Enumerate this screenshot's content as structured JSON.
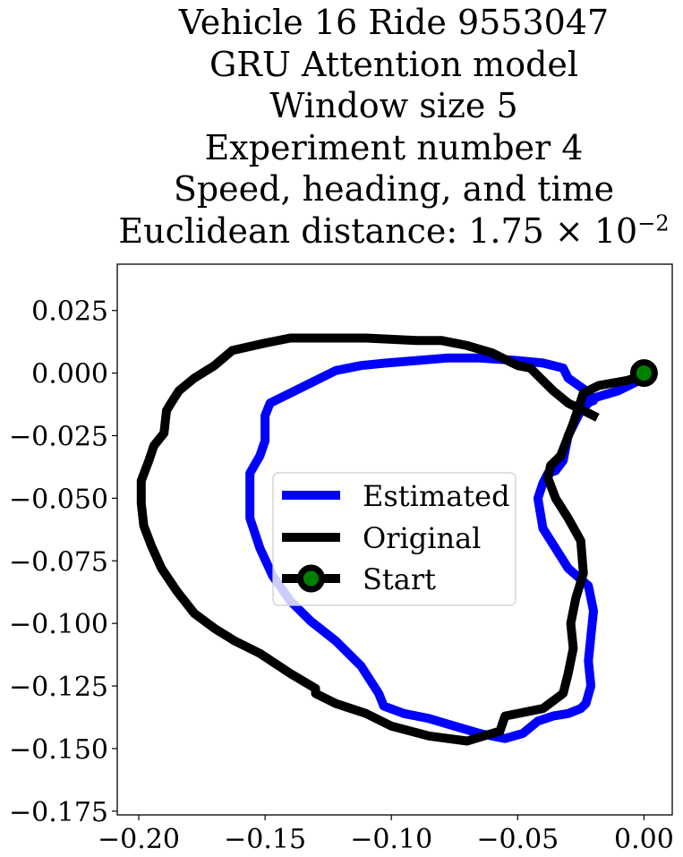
{
  "title": {
    "line1": "Vehicle 16 Ride 9553047",
    "line2": "GRU Attention model",
    "line3": "Window size 5",
    "line4": "Experiment number 4",
    "line5": "Speed, heading, and time",
    "line6_prefix": "Euclidean distance: 1.75 × 10",
    "line6_exponent": "−2"
  },
  "chart_data": {
    "type": "line",
    "title": "Vehicle 16 Ride 9553047 / GRU Attention model / Window size 5 / Experiment number 4 / Speed, heading, and time / Euclidean distance: 1.75×10^-2",
    "xlabel": "",
    "ylabel": "",
    "xlim": [
      -0.2085,
      0.0112
    ],
    "ylim": [
      -0.1765,
      0.0435
    ],
    "grid": false,
    "legend_position": "center",
    "xticks": [
      -0.2,
      -0.15,
      -0.1,
      -0.05,
      0.0
    ],
    "xtick_labels": [
      "−0.20",
      "−0.15",
      "−0.10",
      "−0.05",
      "0.00"
    ],
    "yticks": [
      0.025,
      0.0,
      -0.025,
      -0.05,
      -0.075,
      -0.1,
      -0.125,
      -0.15,
      -0.175
    ],
    "ytick_labels": [
      "0.025",
      "0.000",
      "−0.025",
      "−0.050",
      "−0.075",
      "−0.100",
      "−0.125",
      "−0.150",
      "−0.175"
    ],
    "series": [
      {
        "name": "Estimated",
        "color": "#0000ff",
        "x": [
          0.0,
          -0.01,
          -0.02,
          -0.025,
          -0.03,
          -0.032,
          -0.035,
          -0.038,
          -0.04,
          -0.042,
          -0.04,
          -0.035,
          -0.03,
          -0.022,
          -0.02,
          -0.021,
          -0.022,
          -0.021,
          -0.023,
          -0.025,
          -0.03,
          -0.036,
          -0.042,
          -0.048,
          -0.055,
          -0.065,
          -0.075,
          -0.085,
          -0.095,
          -0.103,
          -0.105,
          -0.112,
          -0.122,
          -0.132,
          -0.14,
          -0.147,
          -0.152,
          -0.156,
          -0.156,
          -0.152,
          -0.15,
          -0.15,
          -0.148,
          -0.14,
          -0.13,
          -0.122,
          -0.112,
          -0.102,
          -0.09,
          -0.078,
          -0.065,
          -0.05,
          -0.04,
          -0.032,
          -0.03,
          -0.023,
          -0.02,
          -0.025
        ],
        "y": [
          -0.002,
          -0.007,
          -0.01,
          -0.015,
          -0.025,
          -0.035,
          -0.039,
          -0.04,
          -0.044,
          -0.05,
          -0.062,
          -0.07,
          -0.078,
          -0.085,
          -0.095,
          -0.105,
          -0.115,
          -0.125,
          -0.132,
          -0.134,
          -0.136,
          -0.137,
          -0.139,
          -0.144,
          -0.146,
          -0.144,
          -0.141,
          -0.138,
          -0.136,
          -0.133,
          -0.128,
          -0.117,
          -0.107,
          -0.099,
          -0.091,
          -0.081,
          -0.07,
          -0.058,
          -0.04,
          -0.033,
          -0.027,
          -0.017,
          -0.012,
          -0.008,
          -0.003,
          0.001,
          0.003,
          0.004,
          0.005,
          0.006,
          0.006,
          0.005,
          0.004,
          0.002,
          -0.002,
          -0.007,
          -0.011,
          -0.013
        ]
      },
      {
        "name": "Original",
        "color": "#000000",
        "x": [
          0.0,
          -0.007,
          -0.018,
          -0.024,
          -0.028,
          -0.033,
          -0.037,
          -0.038,
          -0.035,
          -0.03,
          -0.025,
          -0.024,
          -0.027,
          -0.029,
          -0.028,
          -0.03,
          -0.032,
          -0.04,
          -0.055,
          -0.057,
          -0.07,
          -0.085,
          -0.1,
          -0.11,
          -0.122,
          -0.13,
          -0.13,
          -0.14,
          -0.152,
          -0.162,
          -0.17,
          -0.178,
          -0.185,
          -0.191,
          -0.195,
          -0.198,
          -0.199,
          -0.199,
          -0.196,
          -0.194,
          -0.19,
          -0.189,
          -0.186,
          -0.184,
          -0.178,
          -0.17,
          -0.163,
          -0.15,
          -0.14,
          -0.13,
          -0.11,
          -0.09,
          -0.08,
          -0.07,
          -0.06,
          -0.054,
          -0.05,
          -0.045,
          -0.04,
          -0.036,
          -0.03,
          -0.026,
          -0.02
        ],
        "y": [
          -0.001,
          -0.003,
          -0.005,
          -0.008,
          -0.02,
          -0.033,
          -0.037,
          -0.042,
          -0.05,
          -0.058,
          -0.067,
          -0.08,
          -0.09,
          -0.1,
          -0.11,
          -0.12,
          -0.128,
          -0.134,
          -0.137,
          -0.143,
          -0.147,
          -0.145,
          -0.141,
          -0.136,
          -0.132,
          -0.128,
          -0.126,
          -0.12,
          -0.112,
          -0.107,
          -0.102,
          -0.096,
          -0.087,
          -0.078,
          -0.069,
          -0.061,
          -0.052,
          -0.043,
          -0.035,
          -0.029,
          -0.024,
          -0.015,
          -0.01,
          -0.007,
          -0.002,
          0.003,
          0.009,
          0.012,
          0.014,
          0.014,
          0.014,
          0.013,
          0.013,
          0.011,
          0.008,
          0.005,
          0.003,
          0.002,
          -0.003,
          -0.007,
          -0.012,
          -0.014,
          -0.017
        ]
      }
    ],
    "markers": [
      {
        "name": "Start",
        "x": 0.0,
        "y": 0.0,
        "face_color": "#008000",
        "edge_color": "#000000"
      }
    ],
    "legend": [
      "Estimated",
      "Original",
      "Start"
    ]
  }
}
